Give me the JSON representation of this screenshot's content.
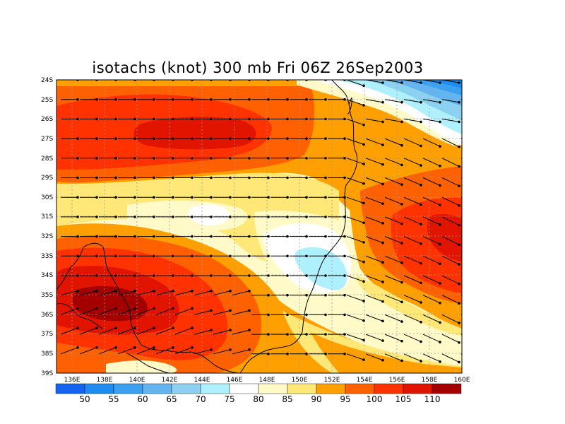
{
  "title": "isotachs (knot) 300 mb Fri 06Z 26Sep2003",
  "lat_labels": [
    "24S",
    "25S",
    "26S",
    "27S",
    "28S",
    "29S",
    "30S",
    "31S",
    "32S",
    "33S",
    "34S",
    "35S",
    "36S",
    "37S",
    "38S",
    "39S"
  ],
  "lon_labels": [
    "136E",
    "138E",
    "140E",
    "142E",
    "144E",
    "146E",
    "148E",
    "150E",
    "152E",
    "154E",
    "156E",
    "158E",
    "160E"
  ],
  "colorbar": {
    "labels": [
      "50",
      "55",
      "60",
      "65",
      "70",
      "75",
      "80",
      "85",
      "90",
      "95",
      "100",
      "105",
      "110"
    ],
    "colors": [
      "#1464f0",
      "#1e8cf0",
      "#3ca0f0",
      "#64b4f0",
      "#8cd2f0",
      "#aff0ff",
      "#ffffff",
      "#fffac8",
      "#ffe878",
      "#ffa000",
      "#ff6000",
      "#ff3200",
      "#e11400",
      "#a50000"
    ]
  },
  "chart_data": {
    "type": "heatmap",
    "title": "isotachs (knot) 300 mb Fri 06Z 26Sep2003",
    "variable": "isotachs (knot)",
    "level": "300 mb",
    "lon_range": [
      135,
      160
    ],
    "lat_range": [
      -39,
      -24
    ],
    "contour_levels": [
      50,
      55,
      60,
      65,
      70,
      75,
      80,
      85,
      90,
      95,
      100,
      105,
      110
    ],
    "wind_barbs": true,
    "coastline": true,
    "grid": true
  }
}
